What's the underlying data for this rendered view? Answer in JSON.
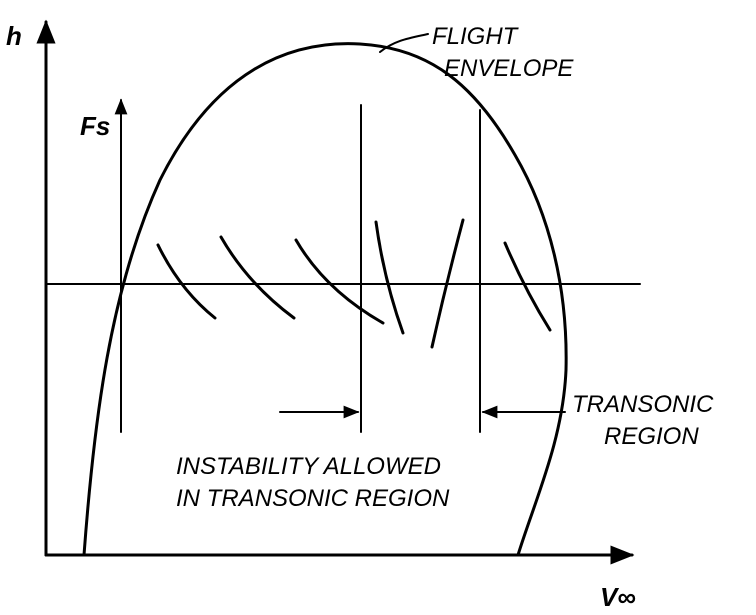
{
  "labels": {
    "y_axis": "h",
    "x_axis": "V∞",
    "fs_axis": "Fs",
    "flight_envelope_line1": "FLIGHT",
    "flight_envelope_line2": "ENVELOPE",
    "transonic_line1": "TRANSONIC",
    "transonic_line2": "REGION",
    "instability_line1": "INSTABILITY ALLOWED",
    "instability_line2": "IN TRANSONIC REGION"
  },
  "colors": {
    "ink": "#000000",
    "background": "#ffffff"
  }
}
